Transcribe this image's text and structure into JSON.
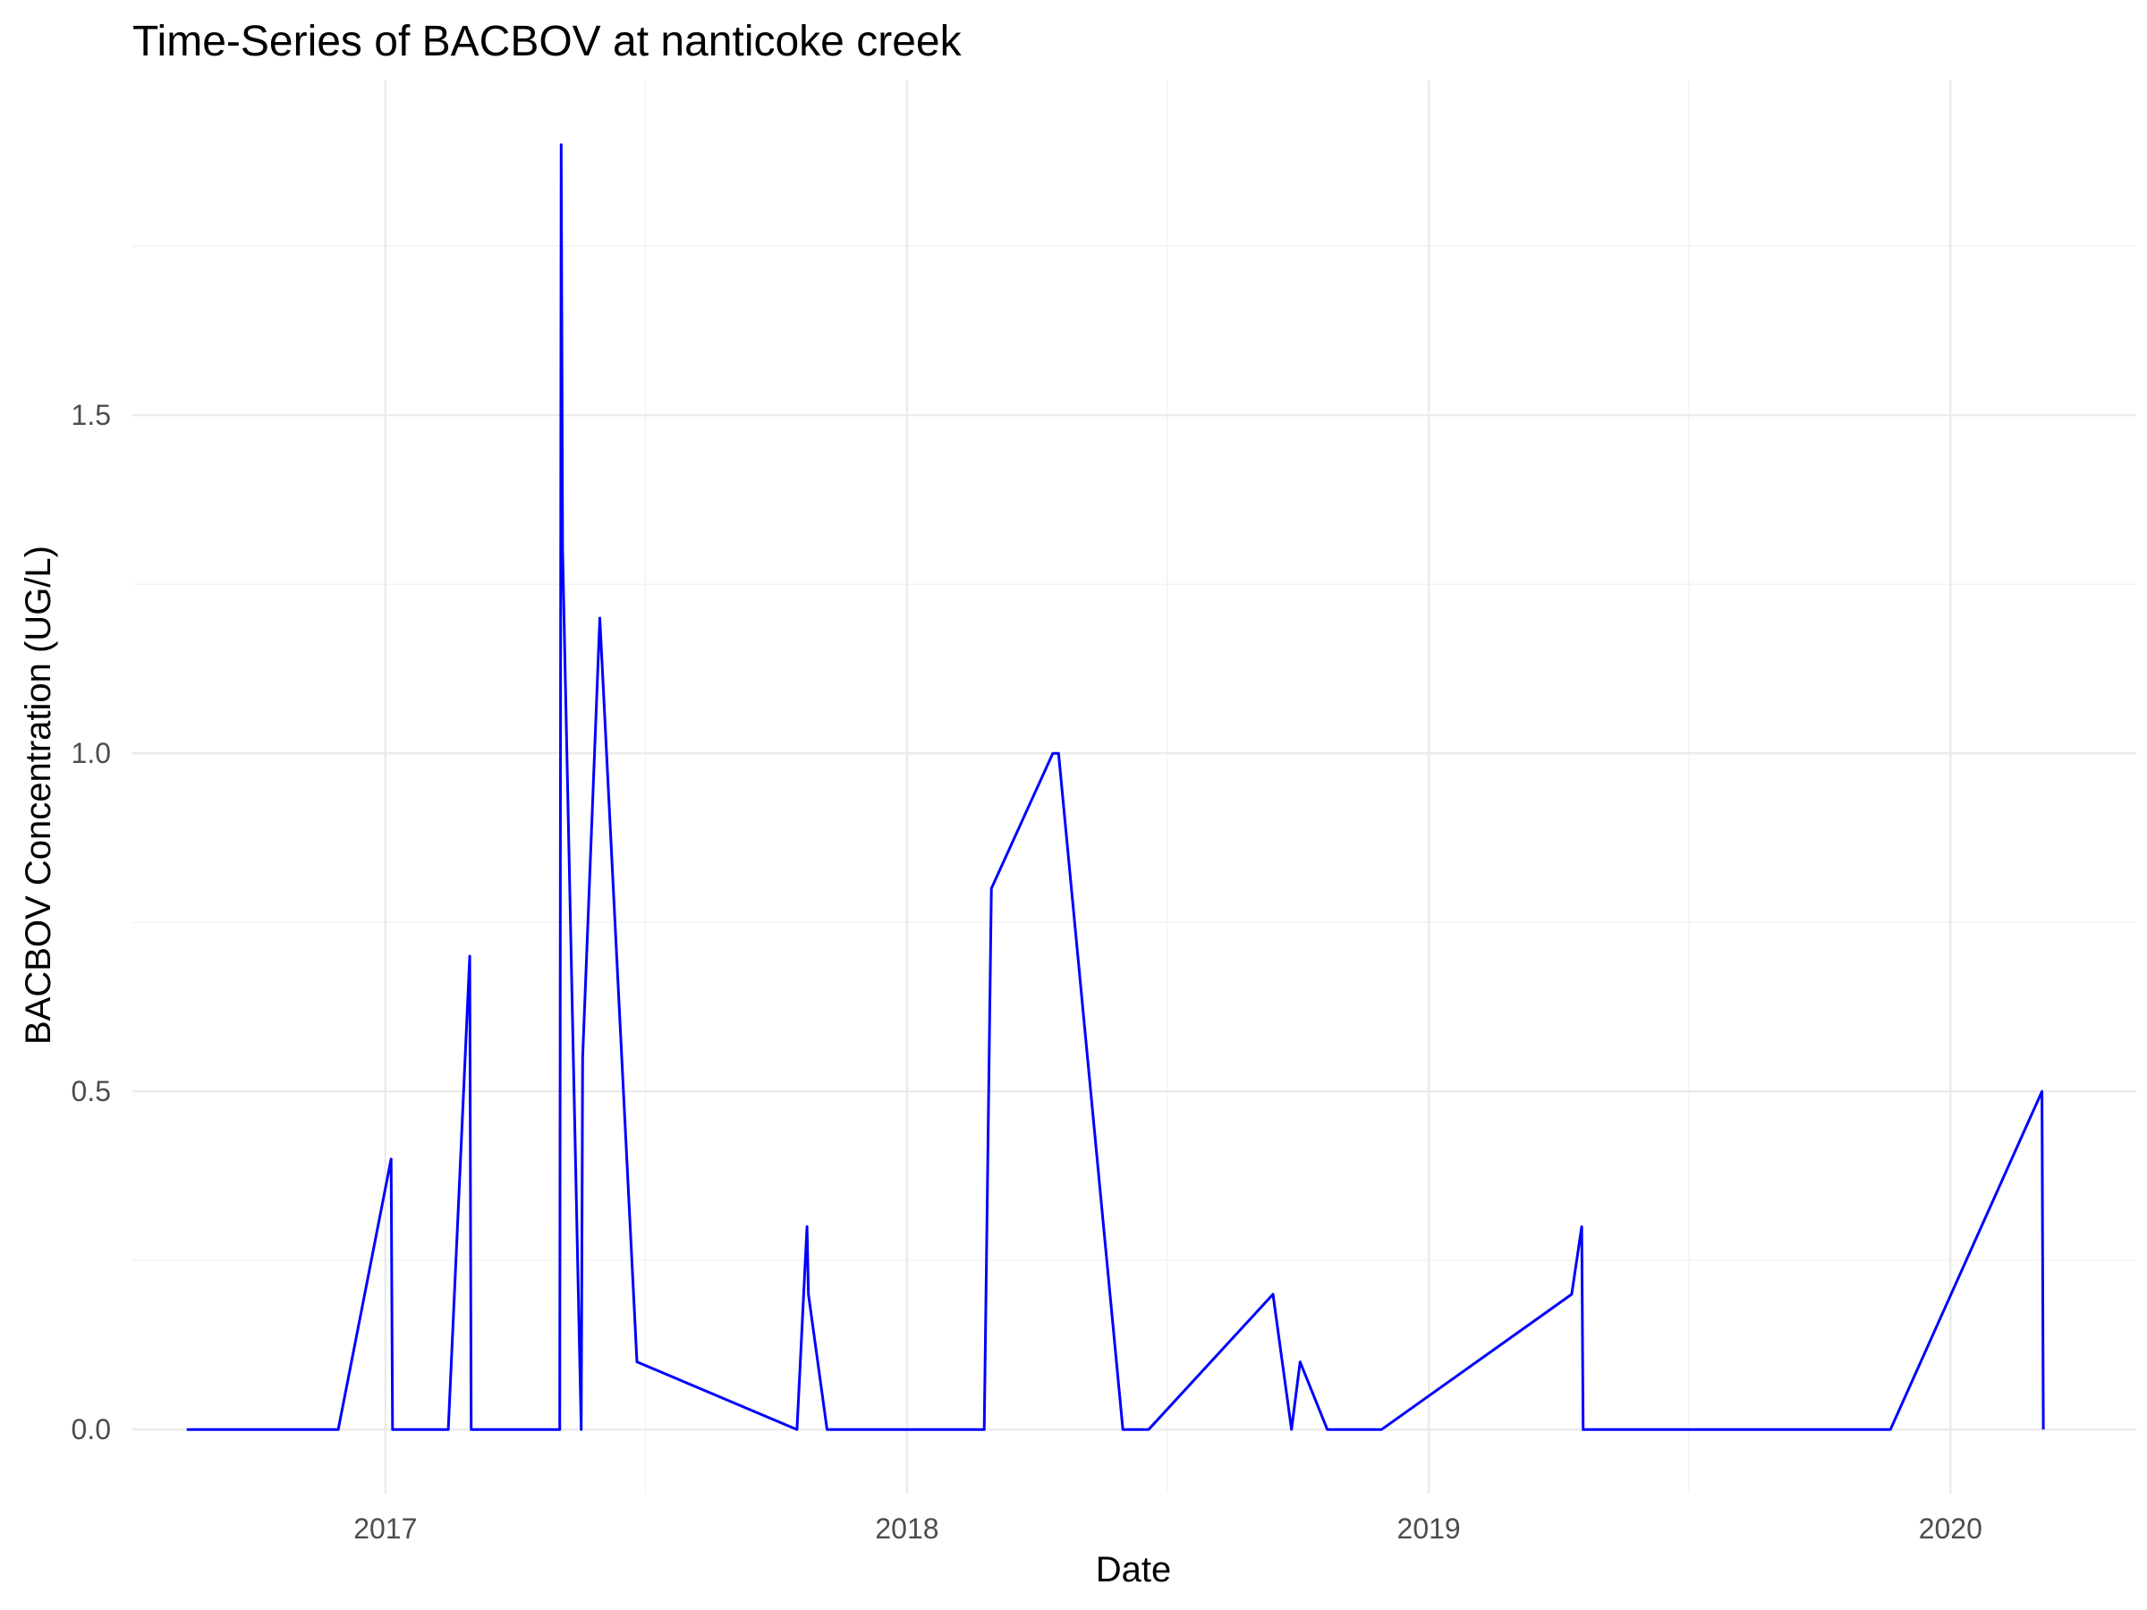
{
  "chart_data": {
    "type": "line",
    "title": "Time-Series of BACBOV at nanticoke creek",
    "xlabel": "Date",
    "ylabel": "BACBOV Concentration (UG/L)",
    "x_ticks": [
      "2017",
      "2018",
      "2019",
      "2020"
    ],
    "y_ticks": [
      "0.0",
      "0.5",
      "1.0",
      "1.5"
    ],
    "xlim": [
      "2016-07-08",
      "2020-05-10"
    ],
    "ylim": [
      -0.095,
      1.995
    ],
    "grid": true,
    "legend": "none",
    "series": [
      {
        "color": "#0000ff",
        "x": [
          "2016-08-15",
          "2016-11-29",
          "2017-01-05",
          "2017-01-06",
          "2017-02-14",
          "2017-03-01",
          "2017-03-02",
          "2017-05-03",
          "2017-05-04",
          "2017-05-05",
          "2017-05-18",
          "2017-05-19",
          "2017-05-31",
          "2017-06-26",
          "2017-10-16",
          "2017-10-23",
          "2017-10-24",
          "2017-11-06",
          "2018-02-24",
          "2018-03-01",
          "2018-04-13",
          "2018-04-17",
          "2018-06-01",
          "2018-06-19",
          "2018-09-14",
          "2018-09-27",
          "2018-10-03",
          "2018-10-22",
          "2018-11-29",
          "2019-04-11",
          "2019-04-18",
          "2019-04-19",
          "2019-11-20",
          "2020-03-05",
          "2020-03-06"
        ],
        "y": [
          0,
          0,
          0.4,
          0,
          0,
          0.7,
          0,
          0,
          1.9,
          1.3,
          0,
          0.55,
          1.2,
          0.1,
          0,
          0.3,
          0.2,
          0,
          0,
          0.8,
          1.0,
          1.0,
          0,
          0,
          0.2,
          0,
          0.1,
          0,
          0,
          0.2,
          0.3,
          0,
          0,
          0.5,
          0
        ]
      }
    ]
  }
}
